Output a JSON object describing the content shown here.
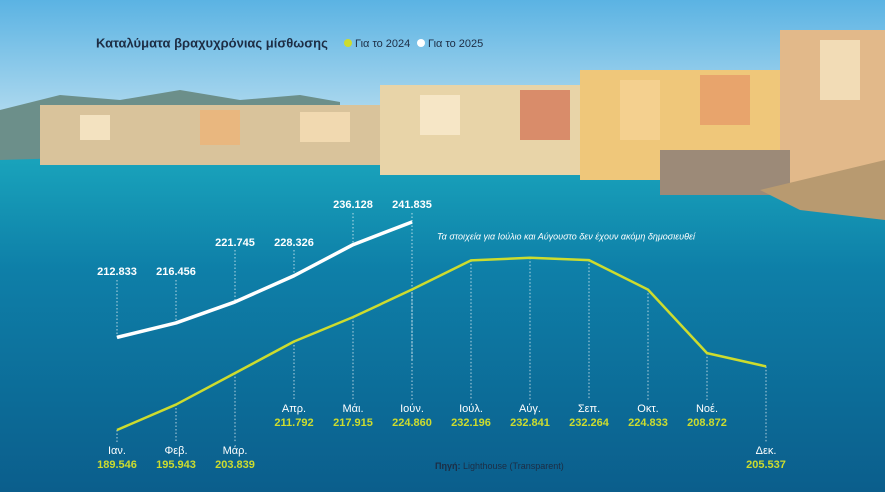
{
  "chart_data": {
    "type": "line",
    "title": "Καταλύματα βραχυχρόνιας μίσθωσης",
    "annotation": "Τα στοιχεία για Ιούλιο και Αύγουστο δεν έχουν ακόμη δημοσιευθεί",
    "source": {
      "label": "Πηγή:",
      "text": "Lighthouse (Transparent)"
    },
    "categories": [
      "Ιαν.",
      "Φεβ.",
      "Μάρ.",
      "Απρ.",
      "Μάι.",
      "Ιούν.",
      "Ιούλ.",
      "Αύγ.",
      "Σεπ.",
      "Οκτ.",
      "Νοέ.",
      "Δεκ."
    ],
    "series": [
      {
        "name": "Για το 2024",
        "color": "#cddc2e",
        "values": [
          189546,
          195943,
          203839,
          211792,
          217915,
          224860,
          232196,
          232841,
          232264,
          224833,
          208872,
          205537
        ],
        "value_labels": [
          "189.546",
          "195.943",
          "203.839",
          "211.792",
          "217.915",
          "224.860",
          "232.196",
          "232.841",
          "232.264",
          "224.833",
          "208.872",
          "205.537"
        ]
      },
      {
        "name": "Για το 2025",
        "color": "#ffffff",
        "values": [
          212833,
          216456,
          221745,
          228326,
          236128,
          241835,
          null,
          null,
          null,
          null,
          null,
          null
        ],
        "value_labels": [
          "212.833",
          "216.456",
          "221.745",
          "228.326",
          "236.128",
          "241.835",
          null,
          null,
          null,
          null,
          null,
          null
        ]
      }
    ]
  }
}
